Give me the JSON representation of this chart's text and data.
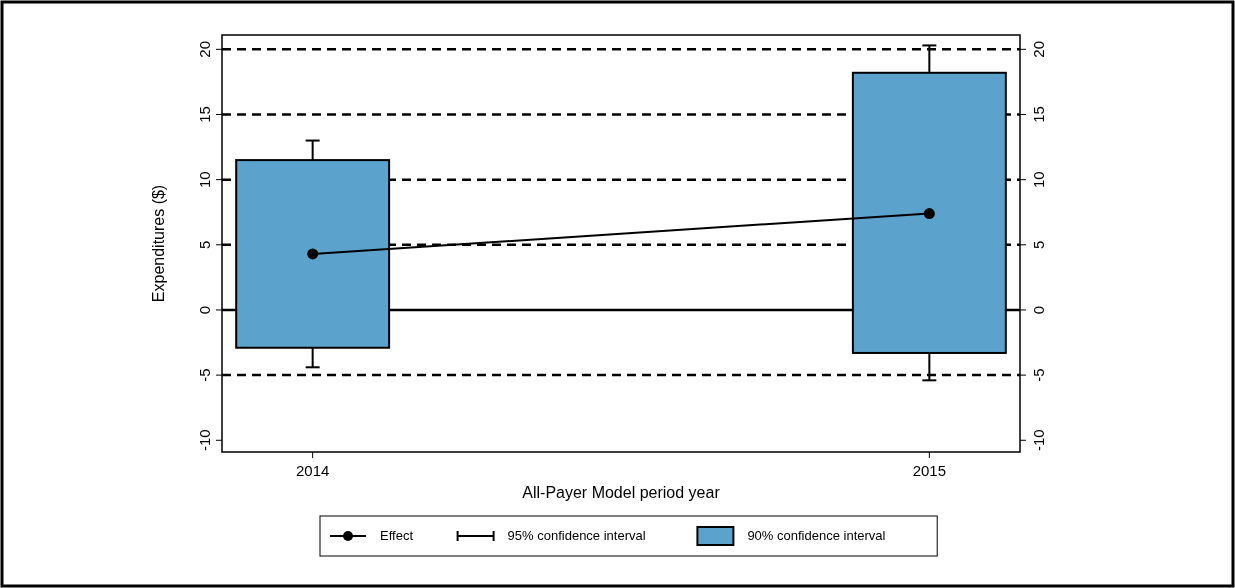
{
  "chart_data": {
    "type": "bar",
    "xlabel": "All-Payer Model period year",
    "ylabel": "Expenditures ($)",
    "categories": [
      "2014",
      "2015"
    ],
    "series": [
      {
        "name": "Effect",
        "type": "line",
        "marker": "circle",
        "line_style": "solid",
        "color": "#000000",
        "values": [
          4.3,
          7.4
        ],
        "errors": [
          [
            -4.4,
            13.0
          ],
          [
            -5.4,
            20.3
          ]
        ]
      },
      {
        "name": "90% confidence interval",
        "color": "#5ba3cc",
        "base": [
          -2.9,
          -3.3
        ],
        "values": [
          14.4,
          21.5
        ]
      }
    ],
    "annotations": [
      "95% confidence interval"
    ],
    "ylim": [
      -10.9,
      21.1
    ],
    "yticks": [
      -10,
      -5,
      0,
      5,
      10,
      15,
      20
    ],
    "y2lim": [
      -10.9,
      21.1
    ],
    "y2ticks": [
      -10,
      -5,
      0,
      5,
      10,
      15,
      20
    ],
    "ref_lines": [
      {
        "axis": "y",
        "value": 20,
        "line_style": "dashed",
        "color": "#000000"
      },
      {
        "axis": "y",
        "value": 15,
        "line_style": "dashed",
        "color": "#000000"
      },
      {
        "axis": "y",
        "value": 10,
        "line_style": "dashed",
        "color": "#000000"
      },
      {
        "axis": "y",
        "value": 5,
        "line_style": "dashed",
        "color": "#000000"
      },
      {
        "axis": "y",
        "value": 0,
        "line_style": "solid",
        "color": "#000000"
      },
      {
        "axis": "y",
        "value": -5,
        "line_style": "dashed",
        "color": "#000000"
      }
    ],
    "legend": "bottom"
  }
}
